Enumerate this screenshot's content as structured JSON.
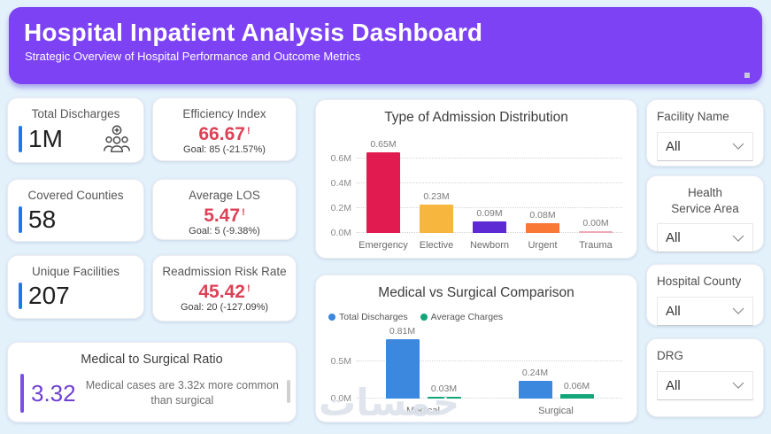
{
  "header": {
    "title": "Hospital Inpatient Analysis Dashboard",
    "subtitle": "Strategic Overview of Hospital Performance and Outcome Metrics"
  },
  "kpis": {
    "total_discharges": {
      "label": "Total Discharges",
      "value": "1M",
      "icon": "patients-group-icon"
    },
    "efficiency_index": {
      "label": "Efficiency Index",
      "value": "66.67",
      "alert": "!",
      "goal": "Goal: 85 (-21.57%)"
    },
    "covered_counties": {
      "label": "Covered Counties",
      "value": "58"
    },
    "average_los": {
      "label": "Average LOS",
      "value": "5.47",
      "alert": "!",
      "goal": "Goal: 5 (-9.38%)"
    },
    "unique_facilities": {
      "label": "Unique Facilities",
      "value": "207"
    },
    "readmission_risk_rate": {
      "label": "Readmission Risk Rate",
      "value": "45.42",
      "alert": "!",
      "goal": "Goal: 20 (-127.09%)"
    },
    "medical_surgical_ratio": {
      "label": "Medical to Surgical Ratio",
      "value": "3.32",
      "description": "Medical cases are 3.32x more common than surgical"
    }
  },
  "chart_data": [
    {
      "type": "bar",
      "title": "Type of Admission Distribution",
      "categories": [
        "Emergency",
        "Elective",
        "Newborn",
        "Urgent",
        "Trauma"
      ],
      "values": [
        0.65,
        0.23,
        0.09,
        0.08,
        0.004
      ],
      "data_labels": [
        "0.65M",
        "0.23M",
        "0.09M",
        "0.08M",
        "0.00M"
      ],
      "bar_colors": [
        "#e11a4f",
        "#f7b73e",
        "#5d2ad3",
        "#fa7836",
        "#eda9b4"
      ],
      "xlabel": "",
      "ylabel": "",
      "ylim": [
        0,
        0.7
      ],
      "yticks": [
        {
          "v": 0,
          "label": "0.0M"
        },
        {
          "v": 0.2,
          "label": "0.2M"
        },
        {
          "v": 0.4,
          "label": "0.4M"
        },
        {
          "v": 0.6,
          "label": "0.6M"
        }
      ],
      "grid": "dotted-horizontal",
      "legend": "none"
    },
    {
      "type": "bar",
      "title": "Medical vs Surgical Comparison",
      "categories": [
        "Medical",
        "Surgical"
      ],
      "series": [
        {
          "name": "Total Discharges",
          "color": "#3b88de",
          "values": [
            0.81,
            0.24
          ],
          "data_labels": [
            "0.81M",
            "0.24M"
          ]
        },
        {
          "name": "Average Charges",
          "color": "#12a57a",
          "values": [
            0.03,
            0.06
          ],
          "data_labels": [
            "0.03M",
            "0.06M"
          ]
        }
      ],
      "xlabel": "",
      "ylabel": "",
      "ylim": [
        0,
        0.9
      ],
      "yticks": [
        {
          "v": 0,
          "label": "0.0M"
        },
        {
          "v": 0.5,
          "label": "0.5M"
        }
      ],
      "grid": "dotted-horizontal",
      "legend": "top-left"
    }
  ],
  "slicers": [
    {
      "label": "Facility Name",
      "value": "All"
    },
    {
      "label": "Health Service Area",
      "value": "All"
    },
    {
      "label": "Hospital County",
      "value": "All"
    },
    {
      "label": "DRG",
      "value": "All"
    }
  ],
  "watermark": "خمسات",
  "colors": {
    "page_bg": "#e3f1fb",
    "header_purple": "#7c42f4",
    "accent_blue": "#1e78f0",
    "accent_purple": "#7a4fe8",
    "value_purple": "#6d40cf",
    "alert_red": "#dd4257"
  }
}
